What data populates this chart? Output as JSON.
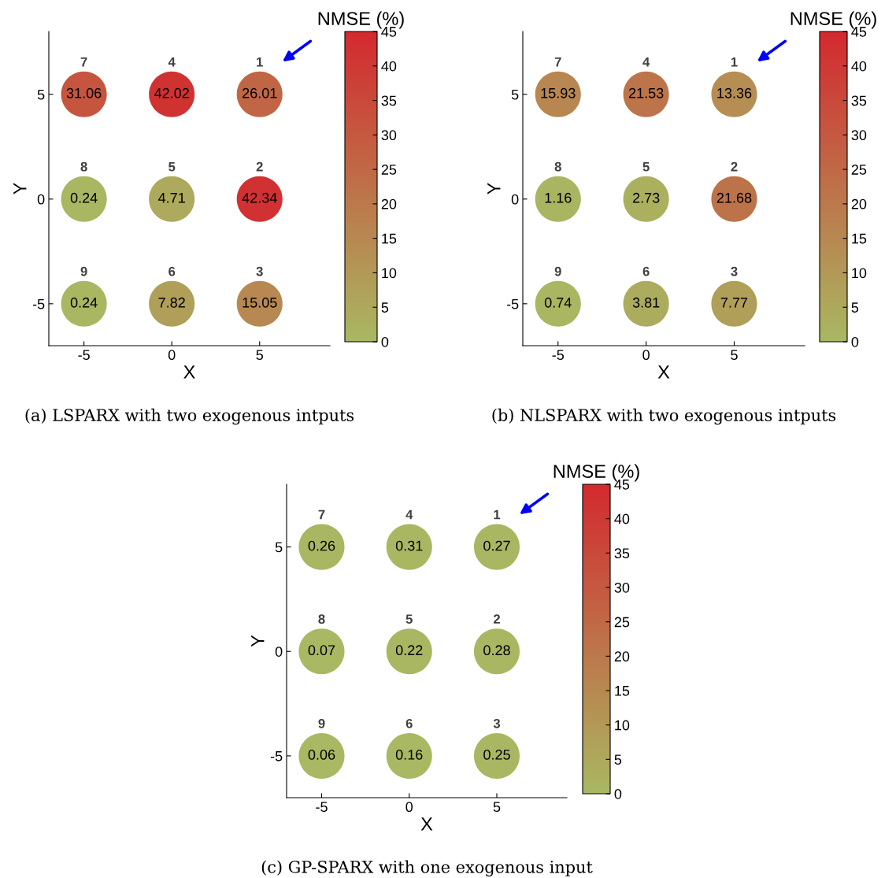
{
  "chart_data": [
    {
      "type": "scatter",
      "title": "(a) LSPARX with two exogenous intputs",
      "xlabel": "X",
      "ylabel": "Y",
      "clabel": "NMSE (%)",
      "marker": "circle",
      "series": [
        {
          "name": "1",
          "x": [
            5
          ],
          "values": [
            5
          ],
          "cvalues": [
            26.01
          ]
        },
        {
          "name": "2",
          "x": [
            5
          ],
          "values": [
            0
          ],
          "cvalues": [
            42.34
          ]
        },
        {
          "name": "3",
          "x": [
            5
          ],
          "values": [
            -5
          ],
          "cvalues": [
            15.05
          ]
        },
        {
          "name": "4",
          "x": [
            0
          ],
          "values": [
            5
          ],
          "cvalues": [
            42.02
          ]
        },
        {
          "name": "5",
          "x": [
            0
          ],
          "values": [
            0
          ],
          "cvalues": [
            4.71
          ]
        },
        {
          "name": "6",
          "x": [
            0
          ],
          "values": [
            -5
          ],
          "cvalues": [
            7.82
          ]
        },
        {
          "name": "7",
          "x": [
            -5
          ],
          "values": [
            5
          ],
          "cvalues": [
            31.06
          ]
        },
        {
          "name": "8",
          "x": [
            -5
          ],
          "values": [
            0
          ],
          "cvalues": [
            0.24
          ]
        },
        {
          "name": "9",
          "x": [
            -5
          ],
          "values": [
            -5
          ],
          "cvalues": [
            0.24
          ]
        }
      ],
      "annotations": [
        {
          "text": "26.01",
          "x": 5,
          "y": 5
        },
        {
          "text": "42.34",
          "x": 5,
          "y": 0
        },
        {
          "text": "15.05",
          "x": 5,
          "y": -5
        },
        {
          "text": "42.02",
          "x": 0,
          "y": 5
        },
        {
          "text": "4.71",
          "x": 0,
          "y": 0
        },
        {
          "text": "7.82",
          "x": 0,
          "y": -5
        },
        {
          "text": "31.06",
          "x": -5,
          "y": 5
        },
        {
          "text": "0.24",
          "x": -5,
          "y": 0
        },
        {
          "text": "0.24",
          "x": -5,
          "y": -5
        }
      ],
      "xlim": [
        -7,
        9
      ],
      "ylim": [
        -7,
        8
      ],
      "xticks": [
        -5,
        0,
        5
      ],
      "yticks": [
        -5,
        0,
        5
      ],
      "clim": [
        0,
        45
      ],
      "cticks": [
        0,
        5,
        10,
        15,
        20,
        25,
        30,
        35,
        40,
        45
      ]
    },
    {
      "type": "scatter",
      "title": "(b) NLSPARX with two exogenous intputs",
      "xlabel": "X",
      "ylabel": "Y",
      "clabel": "NMSE (%)",
      "marker": "circle",
      "series": [
        {
          "name": "1",
          "x": [
            5
          ],
          "values": [
            5
          ],
          "cvalues": [
            13.36
          ]
        },
        {
          "name": "2",
          "x": [
            5
          ],
          "values": [
            0
          ],
          "cvalues": [
            21.68
          ]
        },
        {
          "name": "3",
          "x": [
            5
          ],
          "values": [
            -5
          ],
          "cvalues": [
            7.77
          ]
        },
        {
          "name": "4",
          "x": [
            0
          ],
          "values": [
            5
          ],
          "cvalues": [
            21.53
          ]
        },
        {
          "name": "5",
          "x": [
            0
          ],
          "values": [
            0
          ],
          "cvalues": [
            2.73
          ]
        },
        {
          "name": "6",
          "x": [
            0
          ],
          "values": [
            -5
          ],
          "cvalues": [
            3.81
          ]
        },
        {
          "name": "7",
          "x": [
            -5
          ],
          "values": [
            5
          ],
          "cvalues": [
            15.93
          ]
        },
        {
          "name": "8",
          "x": [
            -5
          ],
          "values": [
            0
          ],
          "cvalues": [
            1.16
          ]
        },
        {
          "name": "9",
          "x": [
            -5
          ],
          "values": [
            -5
          ],
          "cvalues": [
            0.74
          ]
        }
      ],
      "annotations": [
        {
          "text": "13.36",
          "x": 5,
          "y": 5
        },
        {
          "text": "21.68",
          "x": 5,
          "y": 0
        },
        {
          "text": "7.77",
          "x": 5,
          "y": -5
        },
        {
          "text": "21.53",
          "x": 0,
          "y": 5
        },
        {
          "text": "2.73",
          "x": 0,
          "y": 0
        },
        {
          "text": "3.81",
          "x": 0,
          "y": -5
        },
        {
          "text": "15.93",
          "x": -5,
          "y": 5
        },
        {
          "text": "1.16",
          "x": -5,
          "y": 0
        },
        {
          "text": "0.74",
          "x": -5,
          "y": -5
        }
      ],
      "xlim": [
        -7,
        9
      ],
      "ylim": [
        -7,
        8
      ],
      "xticks": [
        -5,
        0,
        5
      ],
      "yticks": [
        -5,
        0,
        5
      ],
      "clim": [
        0,
        45
      ],
      "cticks": [
        0,
        5,
        10,
        15,
        20,
        25,
        30,
        35,
        40,
        45
      ]
    },
    {
      "type": "scatter",
      "title": "(c) GP-SPARX with one exogenous input",
      "xlabel": "X",
      "ylabel": "Y",
      "clabel": "NMSE (%)",
      "marker": "circle",
      "series": [
        {
          "name": "1",
          "x": [
            5
          ],
          "values": [
            5
          ],
          "cvalues": [
            0.27
          ]
        },
        {
          "name": "2",
          "x": [
            5
          ],
          "values": [
            0
          ],
          "cvalues": [
            0.28
          ]
        },
        {
          "name": "3",
          "x": [
            5
          ],
          "values": [
            -5
          ],
          "cvalues": [
            0.25
          ]
        },
        {
          "name": "4",
          "x": [
            0
          ],
          "values": [
            5
          ],
          "cvalues": [
            0.31
          ]
        },
        {
          "name": "5",
          "x": [
            0
          ],
          "values": [
            0
          ],
          "cvalues": [
            0.22
          ]
        },
        {
          "name": "6",
          "x": [
            0
          ],
          "values": [
            -5
          ],
          "cvalues": [
            0.16
          ]
        },
        {
          "name": "7",
          "x": [
            -5
          ],
          "values": [
            5
          ],
          "cvalues": [
            0.26
          ]
        },
        {
          "name": "8",
          "x": [
            -5
          ],
          "values": [
            0
          ],
          "cvalues": [
            0.07
          ]
        },
        {
          "name": "9",
          "x": [
            -5
          ],
          "values": [
            -5
          ],
          "cvalues": [
            0.06
          ]
        }
      ],
      "annotations": [
        {
          "text": "0.27",
          "x": 5,
          "y": 5
        },
        {
          "text": "0.28",
          "x": 5,
          "y": 0
        },
        {
          "text": "0.25",
          "x": 5,
          "y": -5
        },
        {
          "text": "0.31",
          "x": 0,
          "y": 5
        },
        {
          "text": "0.22",
          "x": 0,
          "y": 0
        },
        {
          "text": "0.16",
          "x": 0,
          "y": -5
        },
        {
          "text": "0.26",
          "x": -5,
          "y": 5
        },
        {
          "text": "0.07",
          "x": -5,
          "y": 0
        },
        {
          "text": "0.06",
          "x": -5,
          "y": -5
        }
      ],
      "xlim": [
        -7,
        9
      ],
      "ylim": [
        -7,
        8
      ],
      "xticks": [
        -5,
        0,
        5
      ],
      "yticks": [
        -5,
        0,
        5
      ],
      "clim": [
        0,
        45
      ],
      "cticks": [
        0,
        5,
        10,
        15,
        20,
        25,
        30,
        35,
        40,
        45
      ]
    }
  ]
}
